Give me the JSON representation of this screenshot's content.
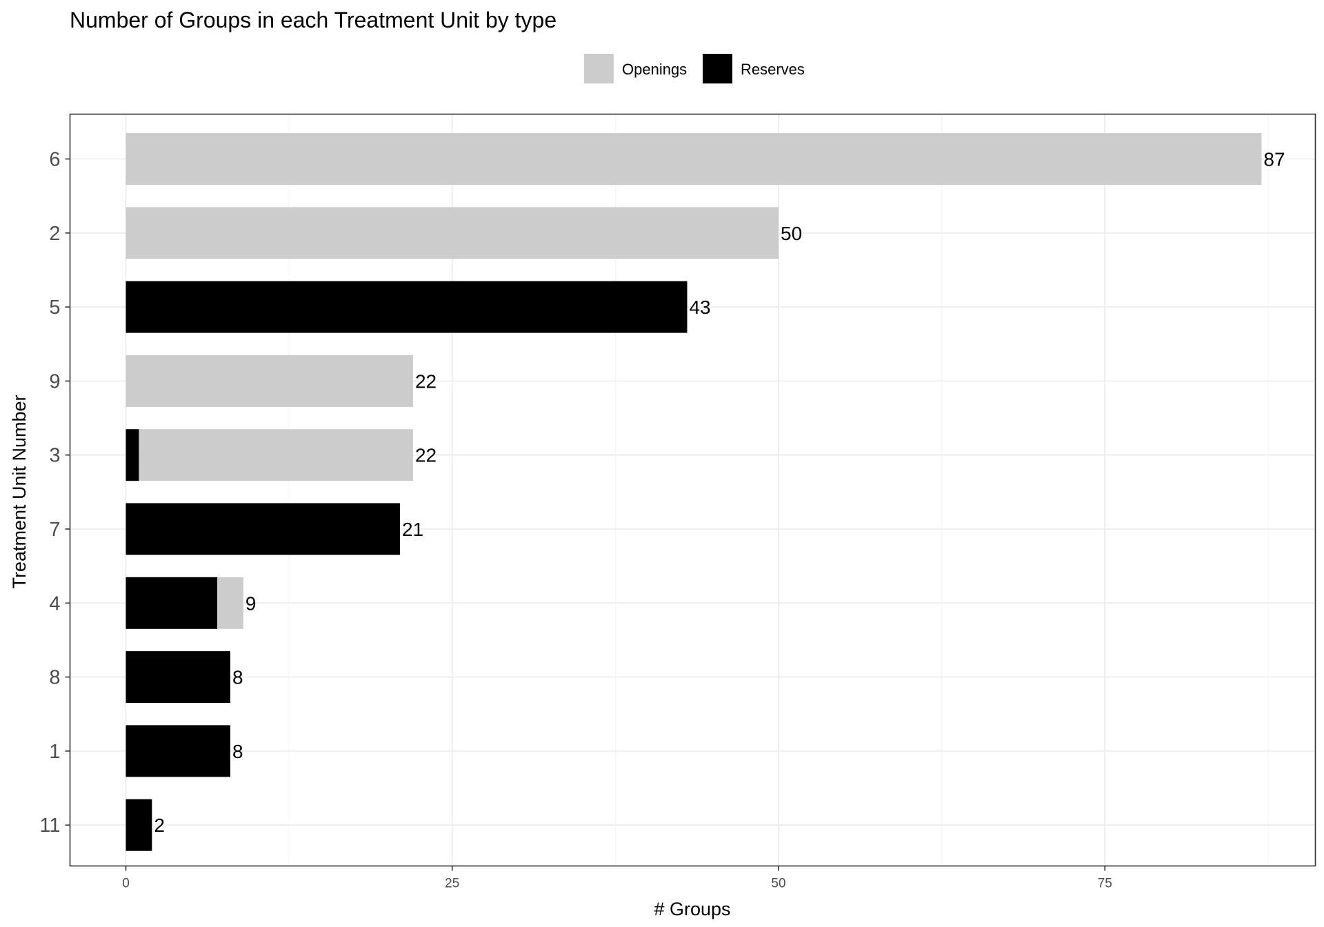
{
  "chart_data": {
    "type": "bar",
    "orientation": "horizontal",
    "stacked": true,
    "title": "Number of Groups in each Treatment Unit by type",
    "xlabel": "# Groups",
    "ylabel": "Treatment Unit Number",
    "xlim": [
      -2.2,
      91.5
    ],
    "x_ticks": [
      0,
      25,
      50,
      75
    ],
    "grid": true,
    "legend": {
      "position": "top",
      "entries": [
        {
          "name": "Openings",
          "color": "#cccccc"
        },
        {
          "name": "Reserves",
          "color": "#000000"
        }
      ]
    },
    "categories": [
      "6",
      "2",
      "5",
      "9",
      "3",
      "7",
      "4",
      "8",
      "1",
      "11"
    ],
    "series": [
      {
        "name": "Reserves",
        "color": "#000000",
        "values": [
          0,
          0,
          43,
          0,
          1,
          21,
          7,
          8,
          8,
          2
        ]
      },
      {
        "name": "Openings",
        "color": "#cccccc",
        "values": [
          87,
          50,
          0,
          22,
          21,
          0,
          2,
          0,
          0,
          0
        ]
      }
    ],
    "totals": [
      87,
      50,
      43,
      22,
      22,
      21,
      9,
      8,
      8,
      2
    ]
  }
}
